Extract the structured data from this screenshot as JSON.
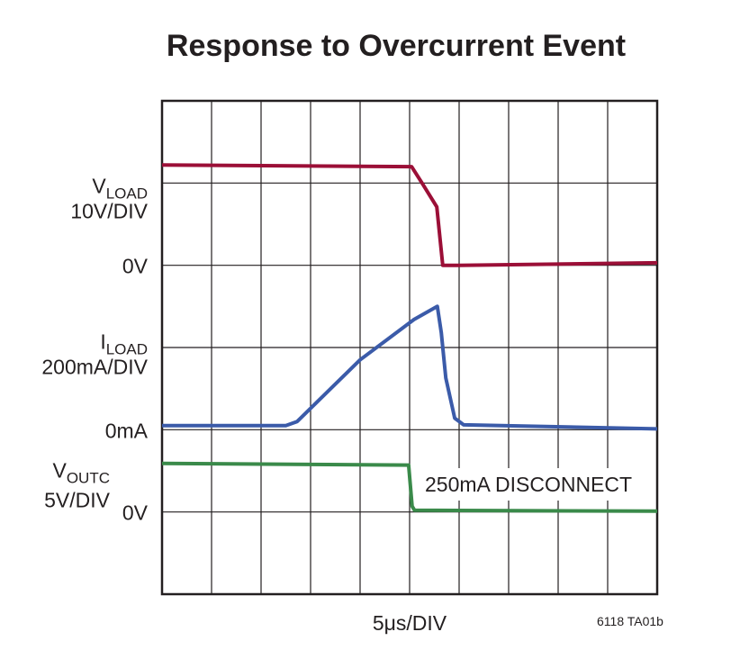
{
  "chart_data": {
    "type": "line",
    "title": "Response to Overcurrent Event",
    "x_label": "5μs/DIV",
    "figure_code": "6118 TA01b",
    "annotation": "250mA DISCONNECT",
    "xlim": [
      0,
      10
    ],
    "ylim": [
      0,
      6
    ],
    "xticks": [
      0,
      1,
      2,
      3,
      4,
      5,
      6,
      7,
      8,
      9,
      10
    ],
    "yticks": [
      0,
      1,
      2,
      3,
      4,
      5,
      6
    ],
    "grid": true,
    "series": [
      {
        "name": "V",
        "name_sub": "LOAD",
        "scale": "10V/DIV",
        "zero_label": "0V",
        "zero_level": 4,
        "color": "#9b0f37",
        "x": [
          0,
          5.04,
          5.25,
          5.55,
          5.67,
          6.0,
          10
        ],
        "values": [
          5.22,
          5.2,
          5.0,
          4.71,
          4.0,
          4.0,
          4.03
        ]
      },
      {
        "name": "I",
        "name_sub": "LOAD",
        "scale": "200mA/DIV",
        "zero_label": "0mA",
        "zero_level": 2,
        "color": "#3b5ba9",
        "x": [
          0,
          2.5,
          2.73,
          4.0,
          5.09,
          5.56,
          5.64,
          5.73,
          5.91,
          6.09,
          10
        ],
        "values": [
          2.05,
          2.05,
          2.1,
          2.85,
          3.34,
          3.5,
          3.18,
          2.63,
          2.14,
          2.06,
          2.01
        ]
      },
      {
        "name": "V",
        "name_sub": "OUTC",
        "scale": "5V/DIV",
        "zero_label": "0V",
        "zero_level": 1,
        "color": "#3a8a4a",
        "x": [
          0,
          4.98,
          5.05,
          5.1,
          10
        ],
        "values": [
          1.59,
          1.57,
          1.07,
          1.02,
          1.01
        ]
      }
    ]
  }
}
